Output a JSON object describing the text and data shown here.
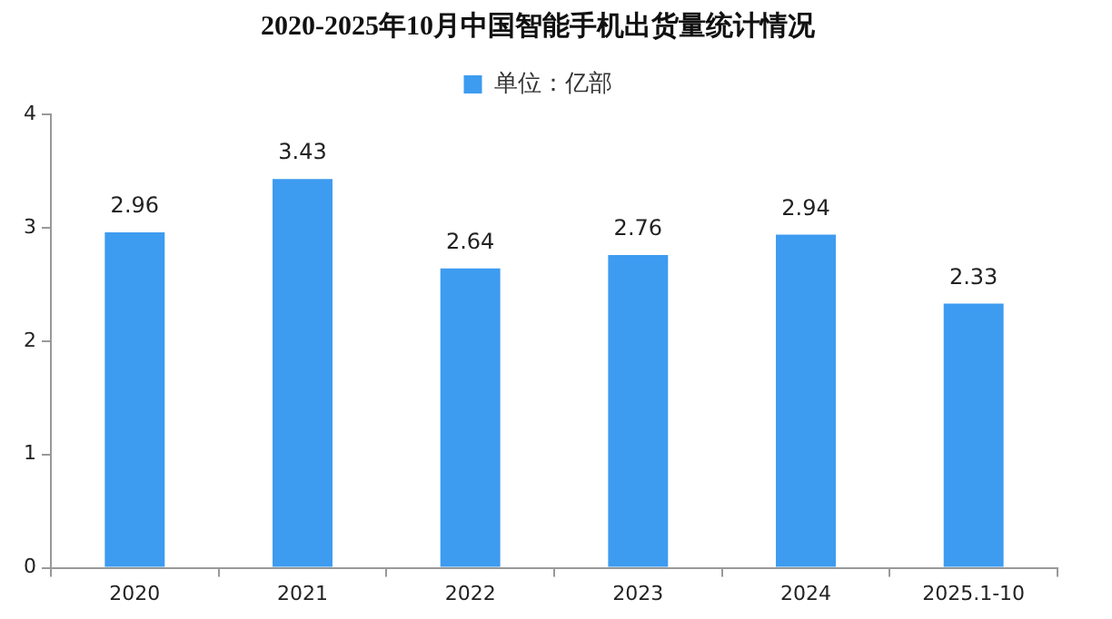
{
  "chart_data": {
    "type": "bar",
    "title": "2020-2025年10月中国智能手机出货量统计情况",
    "categories": [
      "2020",
      "2021",
      "2022",
      "2023",
      "2024",
      "2025.1-10"
    ],
    "series": [
      {
        "name": "单位：亿部",
        "color": "#3d9bf0",
        "values": [
          2.96,
          3.43,
          2.64,
          2.76,
          2.94,
          2.33
        ]
      }
    ],
    "ylim": [
      0,
      4
    ],
    "yticks": [
      0,
      1,
      2,
      3,
      4
    ],
    "grid": false,
    "legend": "top",
    "data_labels": true
  }
}
